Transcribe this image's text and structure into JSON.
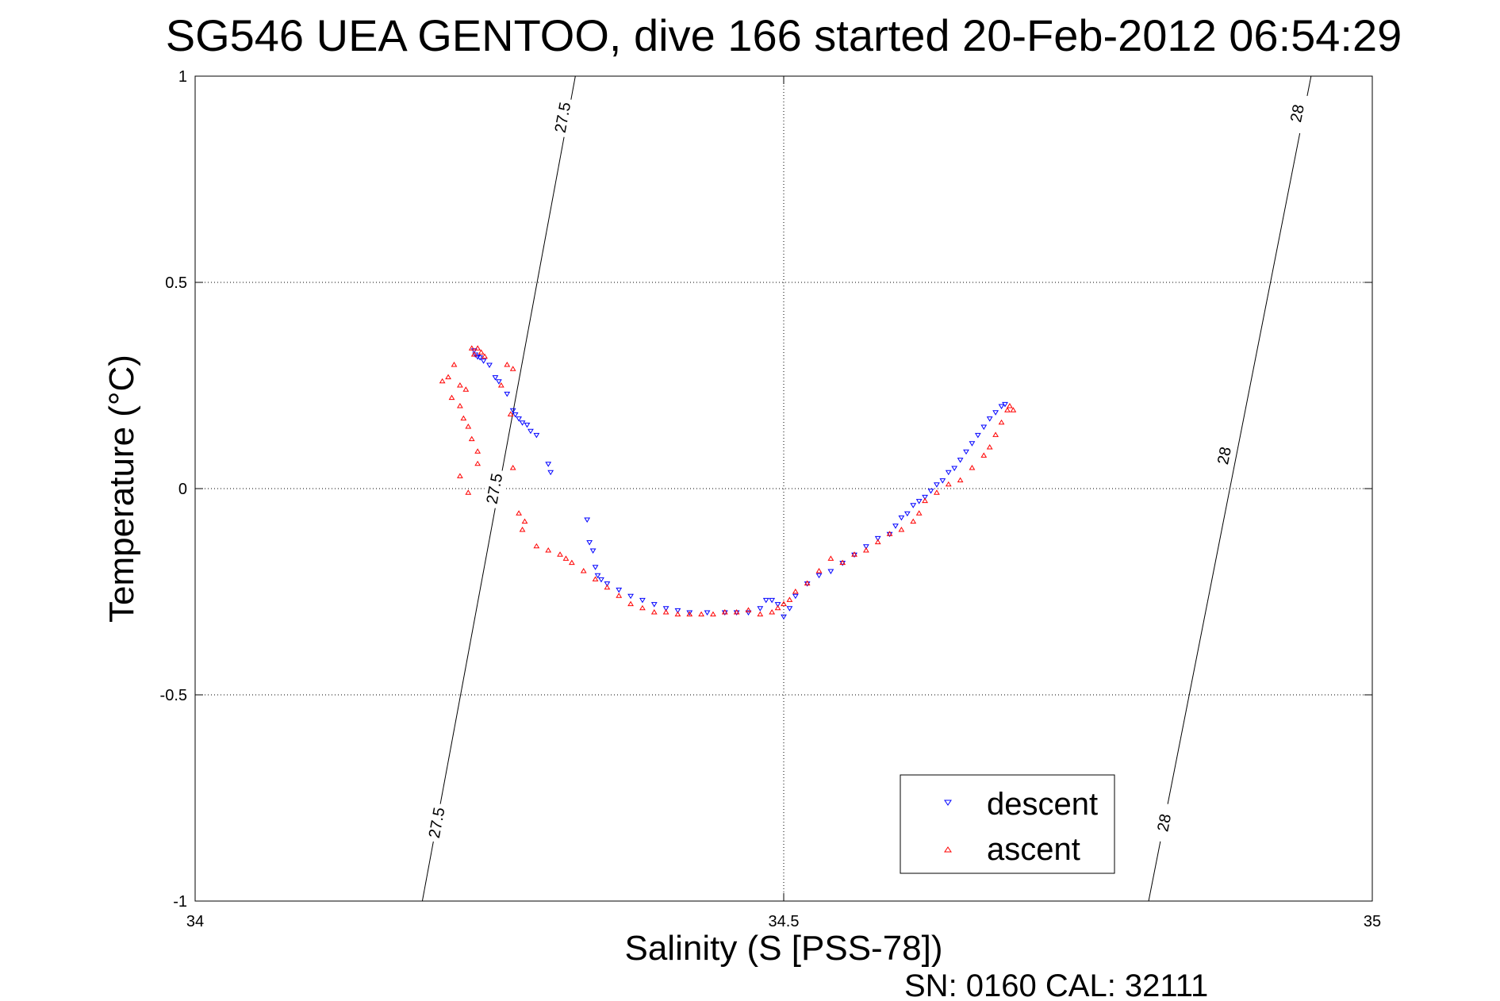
{
  "chart_data": {
    "type": "scatter",
    "title": "SG546 UEA GENTOO, dive 166 started 20-Feb-2012 06:54:29",
    "xlabel": "Salinity (S [PSS-78])",
    "ylabel": "Temperature (°C)",
    "xlim": [
      34,
      35
    ],
    "ylim": [
      -1,
      1
    ],
    "xticks": [
      34,
      34.5,
      35
    ],
    "yticks": [
      -1,
      -0.5,
      0,
      0.5,
      1
    ],
    "xtick_labels": [
      "34",
      "34.5",
      "35"
    ],
    "ytick_labels": [
      "-1",
      "-0.5",
      "0",
      "0.5",
      "1"
    ],
    "grid": true,
    "legend_position": "lower-right",
    "footer": "SN: 0160  CAL: 32111",
    "isopycnals": [
      {
        "label": "27.5",
        "x": [
          34.193,
          34.323
        ],
        "y": [
          -1,
          1
        ],
        "label_positions": [
          [
            34.205,
            -0.81
          ],
          [
            34.254,
            0.0
          ],
          [
            34.312,
            0.9
          ]
        ]
      },
      {
        "label": "28",
        "x": [
          34.81,
          34.948
        ],
        "y": [
          -1,
          1
        ],
        "label_positions": [
          [
            34.823,
            -0.81
          ],
          [
            34.874,
            0.08
          ],
          [
            34.936,
            0.91
          ]
        ]
      }
    ],
    "series": [
      {
        "name": "descent",
        "color": "#0000ff",
        "marker": "triangle-down",
        "points": [
          [
            34.237,
            0.335
          ],
          [
            34.238,
            0.325
          ],
          [
            34.24,
            0.32
          ],
          [
            34.242,
            0.318
          ],
          [
            34.245,
            0.31
          ],
          [
            34.25,
            0.3
          ],
          [
            34.255,
            0.27
          ],
          [
            34.258,
            0.26
          ],
          [
            34.265,
            0.23
          ],
          [
            34.27,
            0.19
          ],
          [
            34.272,
            0.18
          ],
          [
            34.275,
            0.17
          ],
          [
            34.278,
            0.16
          ],
          [
            34.282,
            0.155
          ],
          [
            34.285,
            0.14
          ],
          [
            34.29,
            0.13
          ],
          [
            34.3,
            0.06
          ],
          [
            34.302,
            0.04
          ],
          [
            34.333,
            -0.075
          ],
          [
            34.335,
            -0.13
          ],
          [
            34.338,
            -0.15
          ],
          [
            34.34,
            -0.19
          ],
          [
            34.342,
            -0.21
          ],
          [
            34.345,
            -0.22
          ],
          [
            34.35,
            -0.23
          ],
          [
            34.36,
            -0.245
          ],
          [
            34.37,
            -0.26
          ],
          [
            34.38,
            -0.27
          ],
          [
            34.39,
            -0.28
          ],
          [
            34.4,
            -0.29
          ],
          [
            34.41,
            -0.295
          ],
          [
            34.42,
            -0.3
          ],
          [
            34.435,
            -0.3
          ],
          [
            34.45,
            -0.3
          ],
          [
            34.46,
            -0.3
          ],
          [
            34.47,
            -0.3
          ],
          [
            34.48,
            -0.29
          ],
          [
            34.485,
            -0.27
          ],
          [
            34.49,
            -0.27
          ],
          [
            34.495,
            -0.28
          ],
          [
            34.5,
            -0.31
          ],
          [
            34.505,
            -0.29
          ],
          [
            34.51,
            -0.26
          ],
          [
            34.52,
            -0.23
          ],
          [
            34.53,
            -0.21
          ],
          [
            34.54,
            -0.2
          ],
          [
            34.55,
            -0.18
          ],
          [
            34.56,
            -0.16
          ],
          [
            34.57,
            -0.14
          ],
          [
            34.58,
            -0.12
          ],
          [
            34.59,
            -0.11
          ],
          [
            34.595,
            -0.09
          ],
          [
            34.6,
            -0.07
          ],
          [
            34.605,
            -0.06
          ],
          [
            34.61,
            -0.04
          ],
          [
            34.615,
            -0.03
          ],
          [
            34.62,
            -0.02
          ],
          [
            34.625,
            -0.005
          ],
          [
            34.63,
            0.01
          ],
          [
            34.635,
            0.02
          ],
          [
            34.64,
            0.04
          ],
          [
            34.645,
            0.05
          ],
          [
            34.65,
            0.07
          ],
          [
            34.655,
            0.09
          ],
          [
            34.66,
            0.11
          ],
          [
            34.665,
            0.13
          ],
          [
            34.67,
            0.15
          ],
          [
            34.675,
            0.17
          ],
          [
            34.68,
            0.185
          ],
          [
            34.685,
            0.2
          ],
          [
            34.688,
            0.205
          ]
        ]
      },
      {
        "name": "ascent",
        "color": "#ff0000",
        "marker": "triangle-up",
        "points": [
          [
            34.235,
            0.34
          ],
          [
            34.24,
            0.34
          ],
          [
            34.237,
            0.325
          ],
          [
            34.243,
            0.33
          ],
          [
            34.246,
            0.32
          ],
          [
            34.22,
            0.3
          ],
          [
            34.215,
            0.27
          ],
          [
            34.21,
            0.26
          ],
          [
            34.225,
            0.25
          ],
          [
            34.23,
            0.24
          ],
          [
            34.218,
            0.22
          ],
          [
            34.225,
            0.2
          ],
          [
            34.228,
            0.17
          ],
          [
            34.232,
            0.15
          ],
          [
            34.235,
            0.12
          ],
          [
            34.24,
            0.09
          ],
          [
            34.24,
            0.06
          ],
          [
            34.232,
            -0.01
          ],
          [
            34.225,
            0.03
          ],
          [
            34.265,
            0.3
          ],
          [
            34.27,
            0.29
          ],
          [
            34.26,
            0.25
          ],
          [
            34.268,
            0.18
          ],
          [
            34.27,
            0.05
          ],
          [
            34.275,
            -0.06
          ],
          [
            34.28,
            -0.08
          ],
          [
            34.278,
            -0.1
          ],
          [
            34.29,
            -0.14
          ],
          [
            34.3,
            -0.15
          ],
          [
            34.31,
            -0.16
          ],
          [
            34.315,
            -0.17
          ],
          [
            34.32,
            -0.18
          ],
          [
            34.33,
            -0.2
          ],
          [
            34.34,
            -0.22
          ],
          [
            34.35,
            -0.24
          ],
          [
            34.36,
            -0.26
          ],
          [
            34.37,
            -0.28
          ],
          [
            34.38,
            -0.29
          ],
          [
            34.39,
            -0.3
          ],
          [
            34.4,
            -0.3
          ],
          [
            34.41,
            -0.305
          ],
          [
            34.42,
            -0.305
          ],
          [
            34.43,
            -0.305
          ],
          [
            34.44,
            -0.305
          ],
          [
            34.45,
            -0.3
          ],
          [
            34.46,
            -0.3
          ],
          [
            34.47,
            -0.295
          ],
          [
            34.48,
            -0.305
          ],
          [
            34.49,
            -0.3
          ],
          [
            34.495,
            -0.29
          ],
          [
            34.5,
            -0.28
          ],
          [
            34.505,
            -0.27
          ],
          [
            34.51,
            -0.25
          ],
          [
            34.52,
            -0.23
          ],
          [
            34.53,
            -0.2
          ],
          [
            34.54,
            -0.17
          ],
          [
            34.55,
            -0.18
          ],
          [
            34.56,
            -0.16
          ],
          [
            34.57,
            -0.15
          ],
          [
            34.58,
            -0.13
          ],
          [
            34.59,
            -0.11
          ],
          [
            34.6,
            -0.1
          ],
          [
            34.61,
            -0.08
          ],
          [
            34.615,
            -0.06
          ],
          [
            34.62,
            -0.03
          ],
          [
            34.63,
            -0.01
          ],
          [
            34.64,
            0.01
          ],
          [
            34.65,
            0.02
          ],
          [
            34.66,
            0.05
          ],
          [
            34.67,
            0.08
          ],
          [
            34.675,
            0.1
          ],
          [
            34.68,
            0.13
          ],
          [
            34.685,
            0.16
          ],
          [
            34.69,
            0.19
          ],
          [
            34.692,
            0.2
          ],
          [
            34.695,
            0.19
          ]
        ]
      }
    ]
  }
}
